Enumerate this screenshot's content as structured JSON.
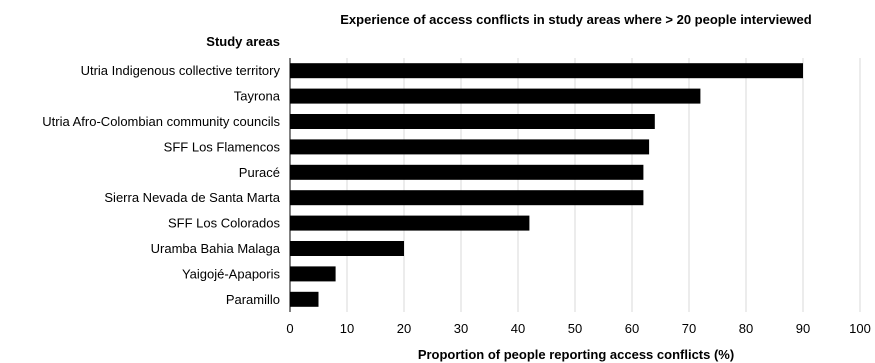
{
  "chart_data": {
    "type": "bar",
    "orientation": "horizontal",
    "title": "Experience of access conflicts in study areas where > 20 people interviewed",
    "ylabel": "Study areas",
    "xlabel": "Proportion of people reporting access conflicts (%)",
    "categories": [
      "Utria Indigenous collective territory",
      "Tayrona",
      "Utria Afro-Colombian community councils",
      "SFF Los Flamencos",
      "Puracé",
      "Sierra Nevada de Santa Marta",
      "SFF Los Colorados",
      "Uramba Bahia Malaga",
      "Yaigojé-Apaporis",
      "Paramillo"
    ],
    "values": [
      90,
      72,
      64,
      63,
      62,
      62,
      42,
      20,
      8,
      5
    ],
    "xlim": [
      0,
      100
    ],
    "xticks": [
      0,
      10,
      20,
      30,
      40,
      50,
      60,
      70,
      80,
      90,
      100
    ],
    "grid": "vertical",
    "bar_color": "#000000",
    "grid_color": "#d9d9d9"
  }
}
